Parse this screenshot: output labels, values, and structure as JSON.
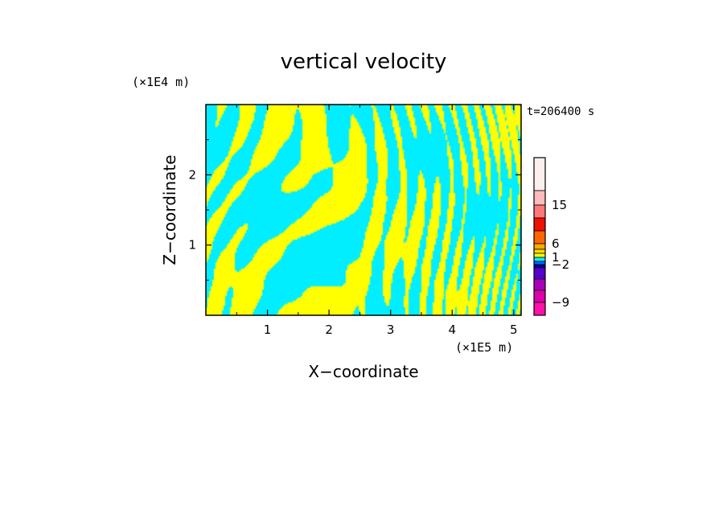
{
  "chart_data": {
    "type": "heatmap",
    "title": "vertical velocity",
    "xlabel": "X−coordinate",
    "ylabel": "Z−coordinate",
    "x_unit": "(×1E5 m)",
    "y_unit": "(×1E4 m)",
    "time_label": "t=206400 s",
    "x_ticks": [
      "1",
      "2",
      "3",
      "4",
      "5"
    ],
    "y_ticks": [
      "1",
      "2"
    ],
    "xlim": [
      0,
      5.12
    ],
    "ylim": [
      0,
      3
    ],
    "grid": false,
    "colors": {
      "positive": "#ffff00",
      "negative": "#00eeff"
    },
    "colorbar": {
      "labels": [
        {
          "text": "15",
          "value": 15
        },
        {
          "text": "6",
          "value": 6
        },
        {
          "text": "1",
          "value": 1
        },
        {
          "text": "−2",
          "value": -2
        },
        {
          "text": "−9",
          "value": -9
        }
      ],
      "levels": [
        {
          "color": "#ffeeee",
          "value": 21
        },
        {
          "color": "#ffbbbb",
          "value": 15
        },
        {
          "color": "#ff7777",
          "value": 12
        },
        {
          "color": "#ee1100",
          "value": 9
        },
        {
          "color": "#ff6600",
          "value": 6
        },
        {
          "color": "#ffaa00",
          "value": 3
        },
        {
          "color": "#ffdd00",
          "value": 2
        },
        {
          "color": "#ffff00",
          "value": 1
        },
        {
          "color": "#00eeff",
          "value": -1
        },
        {
          "color": "#0066ff",
          "value": -2
        },
        {
          "color": "#0000aa",
          "value": -3
        },
        {
          "color": "#5500cc",
          "value": -5
        },
        {
          "color": "#aa00bb",
          "value": -7
        },
        {
          "color": "#dd00aa",
          "value": -9
        },
        {
          "color": "#ff11aa",
          "value": -12
        }
      ]
    }
  }
}
